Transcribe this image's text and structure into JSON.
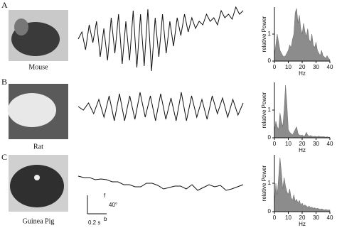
{
  "panels": [
    {
      "letter": "A",
      "animal": "Mouse"
    },
    {
      "letter": "B",
      "animal": "Rat"
    },
    {
      "letter": "C",
      "animal": "Guinea Pig"
    }
  ],
  "scale_bar": {
    "up": "f",
    "down": "b",
    "angle": "40°",
    "time": "0.2 s"
  },
  "chart_data": [
    {
      "type": "line",
      "values": [
        0,
        10,
        -15,
        20,
        -5,
        25,
        -25,
        15,
        -30,
        30,
        -20,
        35,
        -35,
        25,
        -30,
        40,
        -40,
        35,
        -38,
        42,
        -45,
        30,
        -25,
        35,
        -20,
        25,
        -10,
        30,
        5,
        35,
        10,
        30,
        15,
        25,
        20,
        35,
        25,
        30,
        20,
        40,
        30,
        35,
        28,
        45,
        35,
        40
      ],
      "color": "#111"
    },
    {
      "type": "area",
      "x_label": "Hz",
      "y_label": "relative Power",
      "color": "#8c8c8c",
      "x": [
        0,
        1,
        2,
        3,
        4,
        5,
        6,
        7,
        8,
        9,
        10,
        11,
        12,
        13,
        14,
        15,
        16,
        17,
        18,
        19,
        20,
        21,
        22,
        23,
        24,
        25,
        26,
        27,
        28,
        29,
        30,
        31,
        32,
        33,
        34,
        35,
        36,
        37,
        38,
        39,
        40
      ],
      "values": [
        0.2,
        0.6,
        1.0,
        0.7,
        0.4,
        0.3,
        0.2,
        0.16,
        0.2,
        0.3,
        0.4,
        0.6,
        0.5,
        0.8,
        1.0,
        1.8,
        1.95,
        1.4,
        1.7,
        1.2,
        1.0,
        1.4,
        1.1,
        0.9,
        1.2,
        0.8,
        0.7,
        1.0,
        0.6,
        0.5,
        0.7,
        0.4,
        0.3,
        0.2,
        0.4,
        0.2,
        0.16,
        0.1,
        0.2,
        0.1,
        0.06
      ],
      "xlim": [
        0,
        40
      ],
      "ylim": [
        0,
        2
      ],
      "xticks": [
        0,
        10,
        20,
        30,
        40
      ],
      "yticks": [
        0,
        1
      ]
    },
    {
      "type": "line",
      "values": [
        0,
        -5,
        5,
        -10,
        10,
        -15,
        15,
        -20,
        18,
        -20,
        15,
        -18,
        20,
        -15,
        15,
        -20,
        18,
        -18,
        12,
        -20,
        20,
        -20,
        15,
        -15,
        10,
        -18,
        15,
        -10,
        12,
        -15,
        10,
        -12,
        5
      ],
      "color": "#111"
    },
    {
      "type": "area",
      "x_label": "Hz",
      "y_label": "relative Power",
      "color": "#8c8c8c",
      "x": [
        0,
        1,
        2,
        3,
        4,
        5,
        6,
        7,
        8,
        9,
        10,
        11,
        12,
        13,
        14,
        15,
        16,
        17,
        18,
        19,
        20,
        21,
        22,
        23,
        24,
        25,
        26,
        27,
        28,
        29,
        30,
        31,
        32,
        33,
        34,
        35,
        36,
        37,
        38,
        39,
        40
      ],
      "values": [
        0.2,
        0.6,
        0.4,
        0.3,
        0.9,
        0.6,
        0.4,
        1.0,
        1.9,
        1.2,
        0.3,
        0.2,
        0.16,
        0.1,
        0.2,
        0.3,
        0.4,
        0.16,
        0.1,
        0.08,
        0.1,
        0.06,
        0.08,
        0.2,
        0.1,
        0.06,
        0.08,
        0.06,
        0.04,
        0.06,
        0.04,
        0.04,
        0.06,
        0.04,
        0.04,
        0.04,
        0.04,
        0.02,
        0.04,
        0.02,
        0.02
      ],
      "xlim": [
        0,
        40
      ],
      "ylim": [
        0,
        2
      ],
      "xticks": [
        0,
        10,
        20,
        30,
        40
      ],
      "yticks": [
        0,
        1
      ]
    },
    {
      "type": "line",
      "values": [
        10,
        8,
        8,
        5,
        6,
        5,
        2,
        2,
        -2,
        -2,
        -5,
        -5,
        0,
        0,
        -3,
        -8,
        -6,
        -4,
        -4,
        -8,
        -2,
        -10,
        -6,
        -2,
        -5,
        -3,
        -10,
        -8,
        -5,
        -2
      ],
      "color": "#111"
    },
    {
      "type": "area",
      "x_label": "Hz",
      "y_label": "relative Power",
      "color": "#8c8c8c",
      "x": [
        0,
        1,
        2,
        3,
        4,
        5,
        6,
        7,
        8,
        9,
        10,
        11,
        12,
        13,
        14,
        15,
        16,
        17,
        18,
        19,
        20,
        21,
        22,
        23,
        24,
        25,
        26,
        27,
        28,
        29,
        30,
        31,
        32,
        33,
        34,
        35,
        36,
        37,
        38,
        39,
        40
      ],
      "values": [
        0.2,
        1.0,
        0.6,
        1.2,
        1.9,
        1.4,
        0.8,
        1.2,
        0.9,
        0.7,
        0.6,
        0.8,
        0.5,
        0.4,
        0.6,
        0.36,
        0.44,
        0.3,
        0.4,
        0.24,
        0.3,
        0.2,
        0.24,
        0.2,
        0.16,
        0.2,
        0.14,
        0.16,
        0.12,
        0.14,
        0.1,
        0.12,
        0.1,
        0.08,
        0.1,
        0.08,
        0.06,
        0.08,
        0.06,
        0.06,
        0.06
      ],
      "xlim": [
        0,
        40
      ],
      "ylim": [
        0,
        2
      ],
      "xticks": [
        0,
        10,
        20,
        30,
        40
      ],
      "yticks": [
        0,
        1
      ]
    }
  ]
}
